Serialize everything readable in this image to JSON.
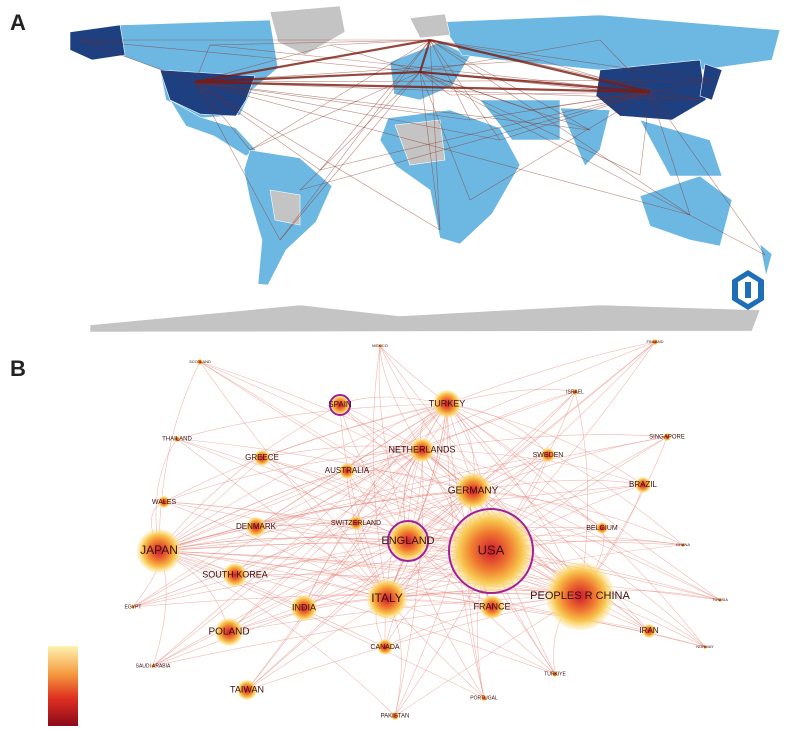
{
  "panel_a": {
    "label": "A"
  },
  "panel_b": {
    "label": "B",
    "nodes": [
      {
        "label": "MEXICO"
      },
      {
        "label": "FINLAND"
      },
      {
        "label": "SCOTLAND"
      },
      {
        "label": "ISRAEL"
      },
      {
        "label": "SPAIN"
      },
      {
        "label": "TURKEY"
      },
      {
        "label": "THAILAND"
      },
      {
        "label": "SINGAPORE"
      },
      {
        "label": "NETHERLANDS"
      },
      {
        "label": "GREECE"
      },
      {
        "label": "AUSTRALIA"
      },
      {
        "label": "SWEDEN"
      },
      {
        "label": "GERMANY"
      },
      {
        "label": "BRAZIL"
      },
      {
        "label": "WALES"
      },
      {
        "label": "DENMARK"
      },
      {
        "label": "SWITZERLAND"
      },
      {
        "label": "BELGIUM"
      },
      {
        "label": "ENGLAND"
      },
      {
        "label": "USA"
      },
      {
        "label": "JAPAN"
      },
      {
        "label": "GHANA"
      },
      {
        "label": "SOUTH KOREA"
      },
      {
        "label": "EGYPT"
      },
      {
        "label": "INDIA"
      },
      {
        "label": "ITALY"
      },
      {
        "label": "FRANCE"
      },
      {
        "label": "PEOPLES R CHINA"
      },
      {
        "label": "TUNISIA"
      },
      {
        "label": "POLAND"
      },
      {
        "label": "IRAN"
      },
      {
        "label": "NORWAY"
      },
      {
        "label": "CANADA"
      },
      {
        "label": "SAUDI ARABIA"
      },
      {
        "label": "TURKIYE"
      },
      {
        "label": "TAIWAN"
      },
      {
        "label": "PORTUGAL"
      },
      {
        "label": "PAKISTAN"
      }
    ]
  }
}
